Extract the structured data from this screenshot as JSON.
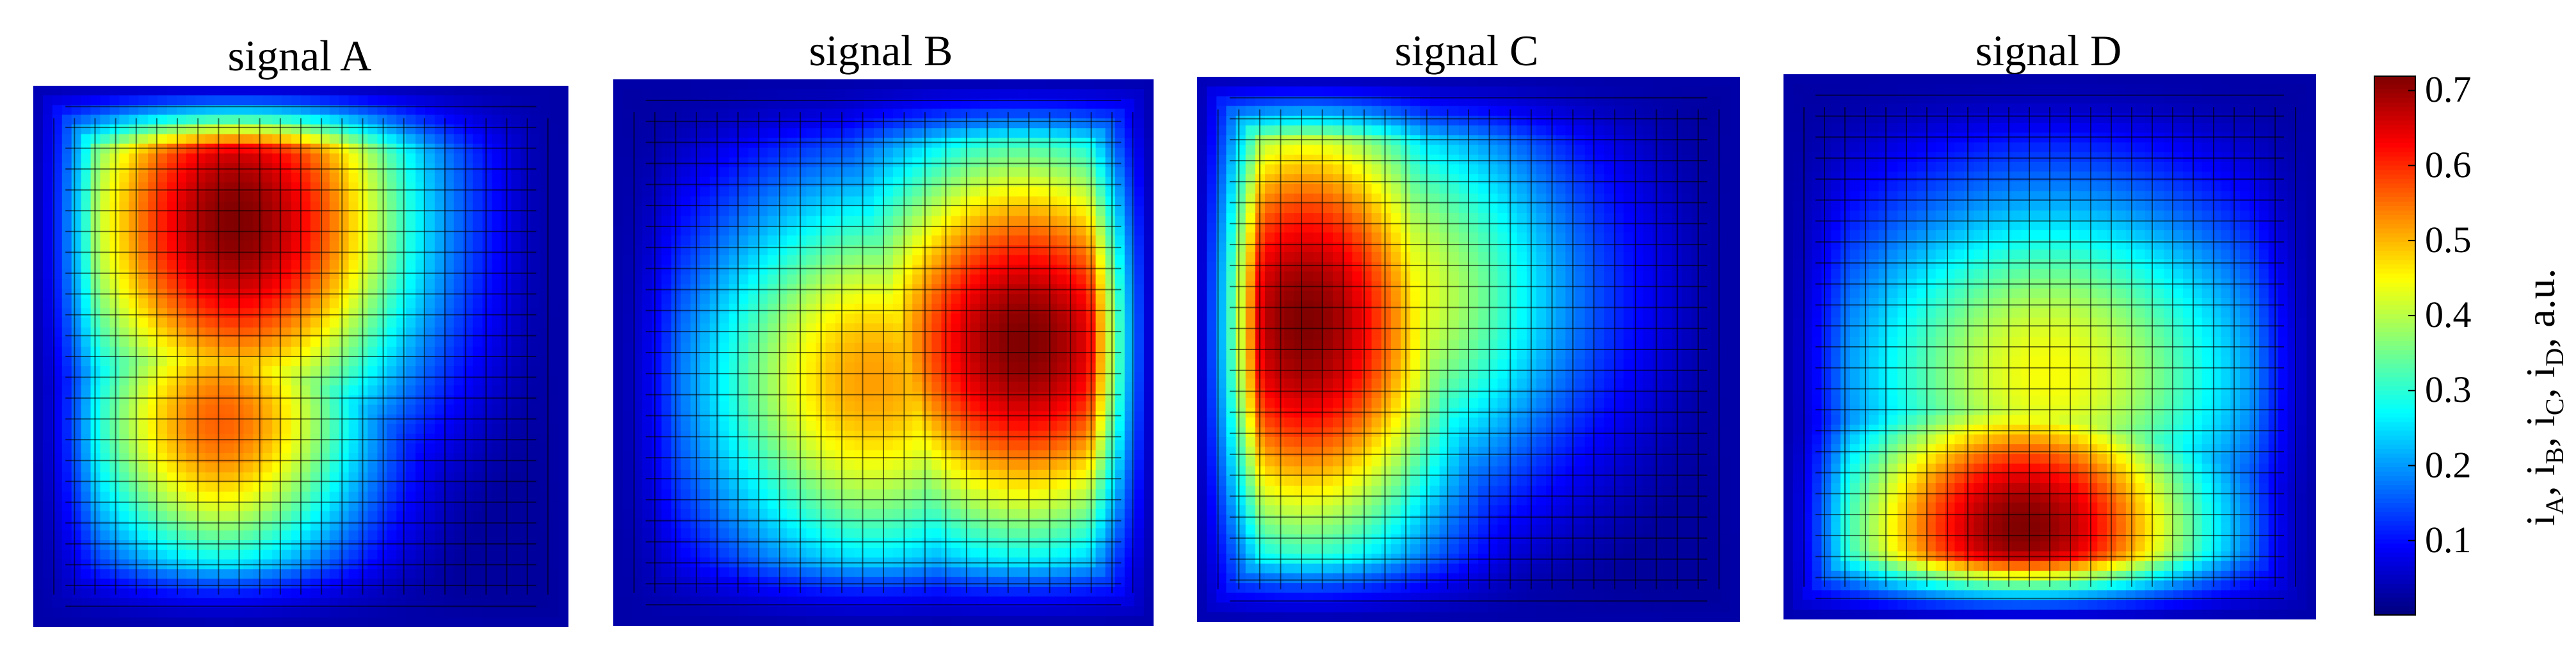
{
  "chart_data": {
    "type": "heatmap",
    "panels": [
      {
        "title": "signal A",
        "peak_xy": [
          0.38,
          0.25
        ],
        "pattern": "upper-left blob"
      },
      {
        "title": "signal B",
        "peak_xy": [
          0.76,
          0.48
        ],
        "pattern": "right-center blob"
      },
      {
        "title": "signal C",
        "peak_xy": [
          0.2,
          0.45
        ],
        "pattern": "left blob"
      },
      {
        "title": "signal D",
        "peak_xy": [
          0.45,
          0.83
        ],
        "pattern": "bottom blob"
      }
    ],
    "grid": true,
    "colormap": "jet",
    "colorbar": {
      "ticks": [
        "0.1",
        "0.2",
        "0.3",
        "0.4",
        "0.5",
        "0.6",
        "0.7"
      ],
      "range": [
        0.0,
        0.72
      ],
      "label_parts": [
        "i",
        "A",
        ", i",
        "B",
        ", i",
        "C",
        ", i",
        "D",
        ", a.u."
      ]
    }
  }
}
